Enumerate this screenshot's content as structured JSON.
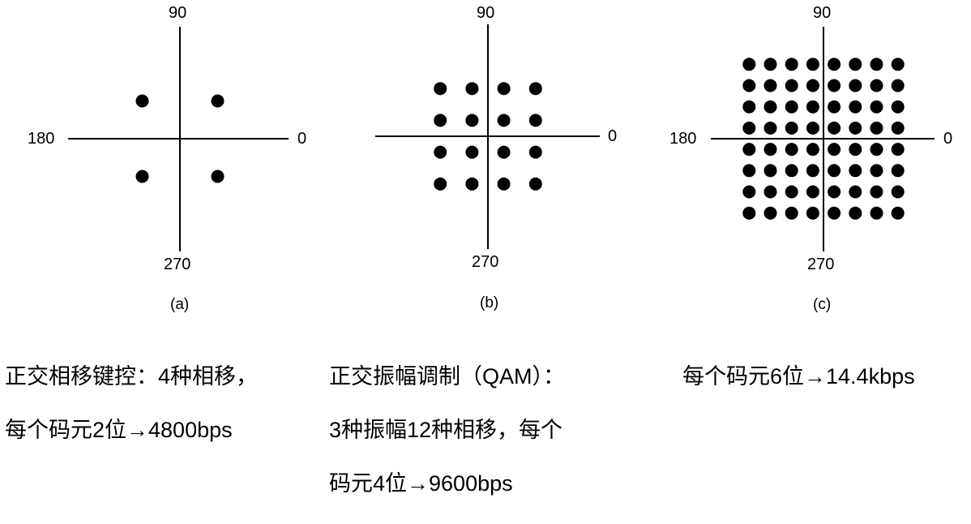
{
  "figure": {
    "panels": [
      {
        "id": "a",
        "tag": "(a)",
        "axis_labels": {
          "top": "90",
          "left": "180",
          "right": "0",
          "bottom": "270"
        },
        "constellation": {
          "columns": [
            -1,
            1
          ],
          "rows": [
            -1,
            1
          ]
        },
        "caption_lines": [
          "正交相移键控：4种相移，",
          "每个码元2位→4800bps"
        ]
      },
      {
        "id": "b",
        "tag": "(b)",
        "axis_labels": {
          "top": "90",
          "left": "",
          "right": "0",
          "bottom": "270"
        },
        "constellation": {
          "columns": [
            -3,
            -1,
            1,
            3
          ],
          "rows": [
            -3,
            -1,
            1,
            3
          ]
        },
        "caption_lines": [
          "正交振幅调制（QAM）：",
          "3种振幅12种相移，每个",
          "码元4位→9600bps"
        ]
      },
      {
        "id": "c",
        "tag": "(c)",
        "axis_labels": {
          "top": "90",
          "left": "180",
          "right": "0",
          "bottom": "270"
        },
        "constellation": {
          "columns": [
            -7,
            -5,
            -3,
            -1,
            1,
            3,
            5,
            7
          ],
          "rows": [
            -7,
            -5,
            -3,
            -1,
            1,
            3,
            5,
            7
          ]
        },
        "caption_lines": [
          "每个码元6位→14.4kbps"
        ]
      }
    ]
  }
}
